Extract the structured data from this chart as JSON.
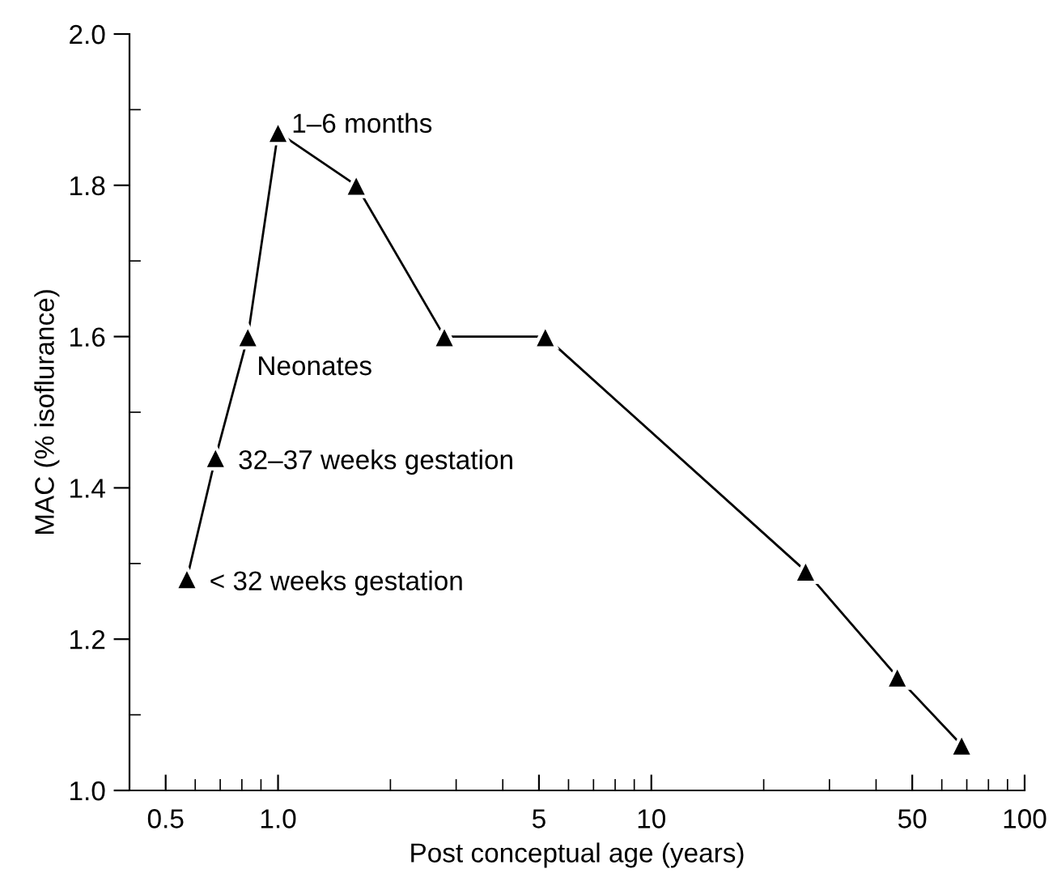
{
  "chart_data": {
    "type": "line",
    "xlabel": "Post conceptual age (years)",
    "ylabel": "MAC (% isoflurance)",
    "x": [
      0.57,
      0.68,
      0.83,
      1.0,
      1.62,
      2.79,
      5.2,
      25.9,
      45.6,
      67.8
    ],
    "series": [
      {
        "color": "#000000",
        "values": [
          1.28,
          1.44,
          1.6,
          1.87,
          1.8,
          1.6,
          1.6,
          1.29,
          1.15,
          1.06
        ]
      }
    ],
    "marker": "triangle",
    "line_style": "solid",
    "log": "x",
    "xlim": [
      0.4,
      100
    ],
    "ylim": [
      1.0,
      2.0
    ],
    "xticks": [
      0.5,
      {
        "value": 0.6,
        "label": null
      },
      {
        "value": 0.7,
        "label": null
      },
      {
        "value": 0.8,
        "label": null
      },
      {
        "value": 0.9,
        "label": null
      },
      {
        "value": 1,
        "label": "1.0"
      },
      {
        "value": 2,
        "label": null
      },
      {
        "value": 3,
        "label": null
      },
      {
        "value": 4,
        "label": null
      },
      5,
      {
        "value": 6,
        "label": null
      },
      {
        "value": 7,
        "label": null
      },
      {
        "value": 8,
        "label": null
      },
      {
        "value": 9,
        "label": null
      },
      10,
      {
        "value": 20,
        "label": null
      },
      {
        "value": 30,
        "label": null
      },
      {
        "value": 40,
        "label": null
      },
      50,
      {
        "value": 60,
        "label": null
      },
      {
        "value": 70,
        "label": null
      },
      {
        "value": 80,
        "label": null
      },
      {
        "value": 90,
        "label": null
      },
      100
    ],
    "yticks": [
      {
        "value": 1.0,
        "label": "1.0"
      },
      {
        "value": 1.1,
        "label": null
      },
      1.2,
      {
        "value": 1.3,
        "label": null
      },
      1.4,
      {
        "value": 1.5,
        "label": null
      },
      1.6,
      {
        "value": 1.7,
        "label": null
      },
      1.8,
      {
        "value": 1.9,
        "label": null
      },
      {
        "value": 2.0,
        "label": "2.0"
      }
    ],
    "grid": false,
    "legend": false,
    "annotations": [
      {
        "text": "< 32 weeks gestation",
        "x": 0.57,
        "y": 1.28
      },
      {
        "text": "32–37 weeks gestation",
        "x": 0.68,
        "y": 1.44
      },
      {
        "text": "Neonates",
        "x": 0.83,
        "y": 1.6
      },
      {
        "text": "1–6 months",
        "x": 1.0,
        "y": 1.87
      }
    ]
  }
}
